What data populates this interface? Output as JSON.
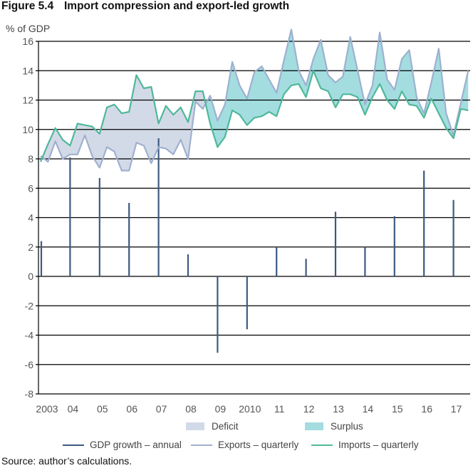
{
  "figure": {
    "number": "Figure 5.4",
    "title": "Import compression and export-led growth",
    "source": "Source: author’s calculations."
  },
  "colors": {
    "gdp": "#3d5a80",
    "exports": "#9fb0d0",
    "imports": "#4fb89a",
    "deficit": "#d3dae7",
    "surplus": "#a3dde0",
    "grid": "#000000"
  },
  "chart_data": {
    "type": "line",
    "title": "Import compression and export-led growth",
    "xlabel": "",
    "ylabel": "% of GDP",
    "ylim": [
      -8,
      16
    ],
    "yticks": [
      16,
      14,
      12,
      10,
      8,
      6,
      4,
      2,
      0,
      -2,
      -4,
      -6,
      -8
    ],
    "ytick_labels": [
      "16",
      "14",
      "12",
      "10",
      "8",
      "6",
      "4",
      "2",
      "0",
      "-2",
      "-4",
      "-6",
      "-8"
    ],
    "xtick_labels": [
      "2003",
      "04",
      "05",
      "06",
      "07",
      "08",
      "09",
      "2010",
      "11",
      "12",
      "13",
      "14",
      "15",
      "16",
      "17"
    ],
    "grid": true,
    "legend": {
      "placement": "bottom",
      "fills": [
        {
          "name": "Deficit",
          "key": "deficit"
        },
        {
          "name": "Surplus",
          "key": "surplus"
        }
      ],
      "lines": [
        {
          "name": "GDP growth – annual",
          "key": "gdp"
        },
        {
          "name": "Exports – quarterly",
          "key": "exports"
        },
        {
          "name": "Imports – quarterly",
          "key": "imports"
        }
      ]
    },
    "gdp_growth_annual": {
      "name": "GDP growth – annual",
      "years": [
        "2003",
        "2004",
        "2005",
        "2006",
        "2007",
        "2008",
        "2009",
        "2010",
        "2011",
        "2012",
        "2013",
        "2014",
        "2015",
        "2016",
        "2017"
      ],
      "values": [
        2.4,
        8.1,
        6.7,
        5.0,
        9.4,
        1.5,
        -5.2,
        -3.6,
        2.0,
        1.2,
        4.4,
        2.0,
        4.1,
        7.2,
        5.2
      ]
    },
    "quarterly_start": "2003Q1",
    "series": [
      {
        "name": "Exports – quarterly",
        "values": [
          8.2,
          7.8,
          9.2,
          8.0,
          8.3,
          8.3,
          9.6,
          8.2,
          7.4,
          8.8,
          8.5,
          7.2,
          7.2,
          9.1,
          8.9,
          7.7,
          8.8,
          8.7,
          8.3,
          9.3,
          8.0,
          11.9,
          11.4,
          12.3,
          10.6,
          11.7,
          14.6,
          13.0,
          12.1,
          13.9,
          14.3,
          13.4,
          12.5,
          14.7,
          16.8,
          14.0,
          13.0,
          14.8,
          16.1,
          13.7,
          13.2,
          13.6,
          16.3,
          14.0,
          11.7,
          13.0,
          16.6,
          13.4,
          12.7,
          14.8,
          15.4,
          12.2,
          11.1,
          13.2,
          15.5,
          11.1,
          9.6,
          11.8,
          14.0
        ]
      },
      {
        "name": "Imports – quarterly",
        "values": [
          7.8,
          9.0,
          10.1,
          9.3,
          8.9,
          10.4,
          10.3,
          10.2,
          9.7,
          11.5,
          11.7,
          11.1,
          11.2,
          13.7,
          12.8,
          12.9,
          10.4,
          11.6,
          11.0,
          11.5,
          10.5,
          12.6,
          12.6,
          10.4,
          8.8,
          9.5,
          11.3,
          11.0,
          10.3,
          10.8,
          10.9,
          11.2,
          10.9,
          12.4,
          13.0,
          13.1,
          12.2,
          14.0,
          12.8,
          12.6,
          11.5,
          12.4,
          12.4,
          12.2,
          11.0,
          12.2,
          13.1,
          12.0,
          11.4,
          12.6,
          11.7,
          11.6,
          10.8,
          12.1,
          11.1,
          10.1,
          9.4,
          11.4,
          11.3
        ]
      }
    ]
  }
}
